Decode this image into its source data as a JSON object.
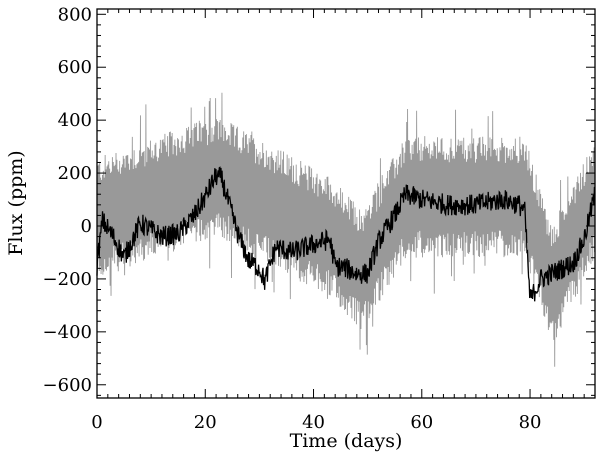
{
  "chart_data": {
    "type": "line",
    "title": "",
    "xlabel": "Time (days)",
    "ylabel": "Flux (ppm)",
    "xlim": [
      0,
      92
    ],
    "ylim": [
      -650,
      820
    ],
    "xticks": [
      0,
      20,
      40,
      60,
      80
    ],
    "xtick_labels": [
      "0",
      "20",
      "40",
      "60",
      "80"
    ],
    "yticks": [
      -600,
      -400,
      -200,
      0,
      200,
      400,
      600,
      800
    ],
    "ytick_labels": [
      "−600",
      "−400",
      "−200",
      "0",
      "200",
      "400",
      "600",
      "800"
    ],
    "grid": false,
    "legend": "none",
    "series": [
      {
        "role": "raw-flux",
        "color": "#999999",
        "noise_halfwidth_ppm": 230,
        "trend": {
          "x": [
            0,
            22,
            43,
            49,
            57,
            79,
            84,
            92
          ],
          "y": [
            30,
            190,
            -40,
            -170,
            110,
            110,
            -230,
            110
          ]
        }
      },
      {
        "role": "smoothed-flux",
        "color": "#000000",
        "trend": {
          "x": [
            0,
            1,
            3,
            5,
            8,
            12,
            15,
            18,
            20,
            22,
            23,
            26,
            28,
            30,
            31,
            33,
            36,
            40,
            43,
            44,
            46,
            48,
            50,
            52,
            55,
            57,
            60,
            65,
            70,
            75,
            78,
            79,
            80,
            82,
            85,
            88,
            90,
            92
          ],
          "y": [
            -150,
            20,
            -40,
            -120,
            10,
            -40,
            -30,
            40,
            110,
            190,
            180,
            -30,
            -130,
            -160,
            -210,
            -80,
            -100,
            -70,
            -50,
            -150,
            -160,
            -180,
            -180,
            -60,
            40,
            120,
            100,
            80,
            80,
            100,
            80,
            60,
            -280,
            -200,
            -170,
            -140,
            -50,
            120
          ]
        }
      }
    ]
  }
}
